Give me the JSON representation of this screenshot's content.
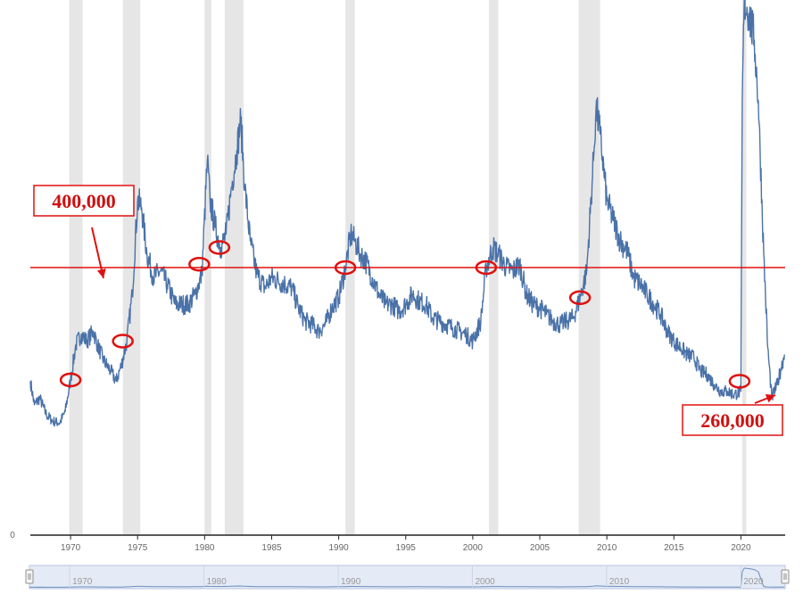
{
  "chart_data": {
    "type": "line",
    "title": "",
    "xlabel": "",
    "ylabel": "",
    "xlim": [
      1967,
      2023.3
    ],
    "x_ticks": [
      "1970",
      "1975",
      "1980",
      "1985",
      "1990",
      "1995",
      "2000",
      "2005",
      "2010",
      "2015",
      "2020"
    ],
    "y_ticks": [
      "0"
    ],
    "grid": false,
    "legend": "none",
    "colors": {
      "line": "#4a72a8",
      "recession": "#e6e6e6",
      "annotation": "#e01010",
      "axis": "#222222"
    },
    "recessions": [
      [
        1969.9,
        1970.9
      ],
      [
        1973.9,
        1975.2
      ],
      [
        1980.0,
        1980.5
      ],
      [
        1981.5,
        1982.9
      ],
      [
        1990.5,
        1991.2
      ],
      [
        2001.2,
        2001.9
      ],
      [
        2007.9,
        2009.5
      ],
      [
        2020.1,
        2020.4
      ]
    ],
    "series": [
      {
        "values": [
          [
            1967.0,
            230000
          ],
          [
            1967.3,
            195000
          ],
          [
            1967.7,
            205000
          ],
          [
            1968.2,
            180000
          ],
          [
            1968.7,
            170000
          ],
          [
            1969.2,
            168000
          ],
          [
            1969.6,
            185000
          ],
          [
            1970.0,
            232000
          ],
          [
            1970.4,
            285000
          ],
          [
            1970.8,
            300000
          ],
          [
            1971.2,
            290000
          ],
          [
            1971.7,
            305000
          ],
          [
            1972.0,
            285000
          ],
          [
            1972.5,
            260000
          ],
          [
            1973.0,
            245000
          ],
          [
            1973.4,
            230000
          ],
          [
            1973.8,
            255000
          ],
          [
            1974.2,
            290000
          ],
          [
            1974.6,
            360000
          ],
          [
            1975.0,
            500000
          ],
          [
            1975.3,
            490000
          ],
          [
            1975.7,
            420000
          ],
          [
            1976.2,
            385000
          ],
          [
            1976.7,
            395000
          ],
          [
            1977.2,
            375000
          ],
          [
            1977.8,
            345000
          ],
          [
            1978.3,
            345000
          ],
          [
            1978.8,
            345000
          ],
          [
            1979.3,
            360000
          ],
          [
            1979.8,
            390000
          ],
          [
            1980.2,
            560000
          ],
          [
            1980.4,
            500000
          ],
          [
            1980.8,
            460000
          ],
          [
            1981.2,
            430000
          ],
          [
            1981.6,
            450000
          ],
          [
            1982.0,
            520000
          ],
          [
            1982.4,
            575000
          ],
          [
            1982.7,
            620000
          ],
          [
            1983.0,
            520000
          ],
          [
            1983.4,
            440000
          ],
          [
            1983.9,
            390000
          ],
          [
            1984.5,
            370000
          ],
          [
            1985.0,
            385000
          ],
          [
            1985.5,
            380000
          ],
          [
            1986.0,
            375000
          ],
          [
            1986.5,
            370000
          ],
          [
            1987.0,
            340000
          ],
          [
            1987.5,
            320000
          ],
          [
            1988.0,
            315000
          ],
          [
            1988.5,
            305000
          ],
          [
            1989.0,
            315000
          ],
          [
            1989.5,
            340000
          ],
          [
            1990.0,
            355000
          ],
          [
            1990.5,
            400000
          ],
          [
            1990.9,
            450000
          ],
          [
            1991.2,
            440000
          ],
          [
            1991.6,
            420000
          ],
          [
            1992.0,
            410000
          ],
          [
            1992.5,
            385000
          ],
          [
            1993.0,
            360000
          ],
          [
            1993.5,
            345000
          ],
          [
            1994.0,
            345000
          ],
          [
            1994.5,
            335000
          ],
          [
            1995.0,
            345000
          ],
          [
            1995.5,
            360000
          ],
          [
            1996.0,
            350000
          ],
          [
            1996.5,
            345000
          ],
          [
            1997.0,
            325000
          ],
          [
            1997.5,
            320000
          ],
          [
            1998.0,
            315000
          ],
          [
            1998.5,
            310000
          ],
          [
            1999.0,
            305000
          ],
          [
            1999.5,
            300000
          ],
          [
            2000.0,
            290000
          ],
          [
            2000.6,
            320000
          ],
          [
            2001.0,
            400000
          ],
          [
            2001.5,
            430000
          ],
          [
            2001.9,
            420000
          ],
          [
            2002.5,
            400000
          ],
          [
            2003.0,
            395000
          ],
          [
            2003.5,
            405000
          ],
          [
            2004.0,
            360000
          ],
          [
            2004.5,
            345000
          ],
          [
            2005.0,
            340000
          ],
          [
            2005.5,
            330000
          ],
          [
            2006.0,
            320000
          ],
          [
            2006.5,
            315000
          ],
          [
            2007.0,
            320000
          ],
          [
            2007.5,
            325000
          ],
          [
            2008.0,
            355000
          ],
          [
            2008.5,
            395000
          ],
          [
            2009.0,
            560000
          ],
          [
            2009.2,
            640000
          ],
          [
            2009.5,
            600000
          ],
          [
            2010.0,
            500000
          ],
          [
            2010.5,
            470000
          ],
          [
            2011.0,
            440000
          ],
          [
            2011.5,
            425000
          ],
          [
            2012.0,
            385000
          ],
          [
            2012.5,
            375000
          ],
          [
            2013.0,
            360000
          ],
          [
            2013.5,
            345000
          ],
          [
            2014.0,
            330000
          ],
          [
            2014.5,
            305000
          ],
          [
            2015.0,
            290000
          ],
          [
            2015.5,
            280000
          ],
          [
            2016.0,
            270000
          ],
          [
            2016.5,
            265000
          ],
          [
            2017.0,
            245000
          ],
          [
            2017.5,
            240000
          ],
          [
            2018.0,
            225000
          ],
          [
            2018.5,
            215000
          ],
          [
            2019.0,
            215000
          ],
          [
            2019.5,
            210000
          ],
          [
            2020.0,
            215000
          ],
          [
            2020.1,
            650000
          ],
          [
            2020.25,
            800000
          ],
          [
            2020.6,
            780000
          ],
          [
            2021.0,
            740000
          ],
          [
            2021.3,
            650000
          ],
          [
            2021.7,
            420000
          ],
          [
            2022.0,
            280000
          ],
          [
            2022.3,
            205000
          ],
          [
            2022.7,
            225000
          ],
          [
            2023.0,
            250000
          ],
          [
            2023.25,
            270000
          ]
        ]
      }
    ],
    "annotations": [
      {
        "label": "400,000",
        "y": 400000
      },
      {
        "label": "260,000",
        "x": 2022.3,
        "y": 220000
      }
    ],
    "circled_points": [
      [
        1970.0,
        232000
      ],
      [
        1973.9,
        290000
      ],
      [
        1979.6,
        405000
      ],
      [
        1981.1,
        430000
      ],
      [
        1990.5,
        400000
      ],
      [
        2001.0,
        400000
      ],
      [
        2008.0,
        355000
      ],
      [
        2019.9,
        230000
      ]
    ],
    "navigator": {
      "range": [
        "1967",
        "2023"
      ],
      "labels": [
        "1970",
        "1980",
        "1990",
        "2000",
        "2010",
        "2020"
      ]
    }
  }
}
